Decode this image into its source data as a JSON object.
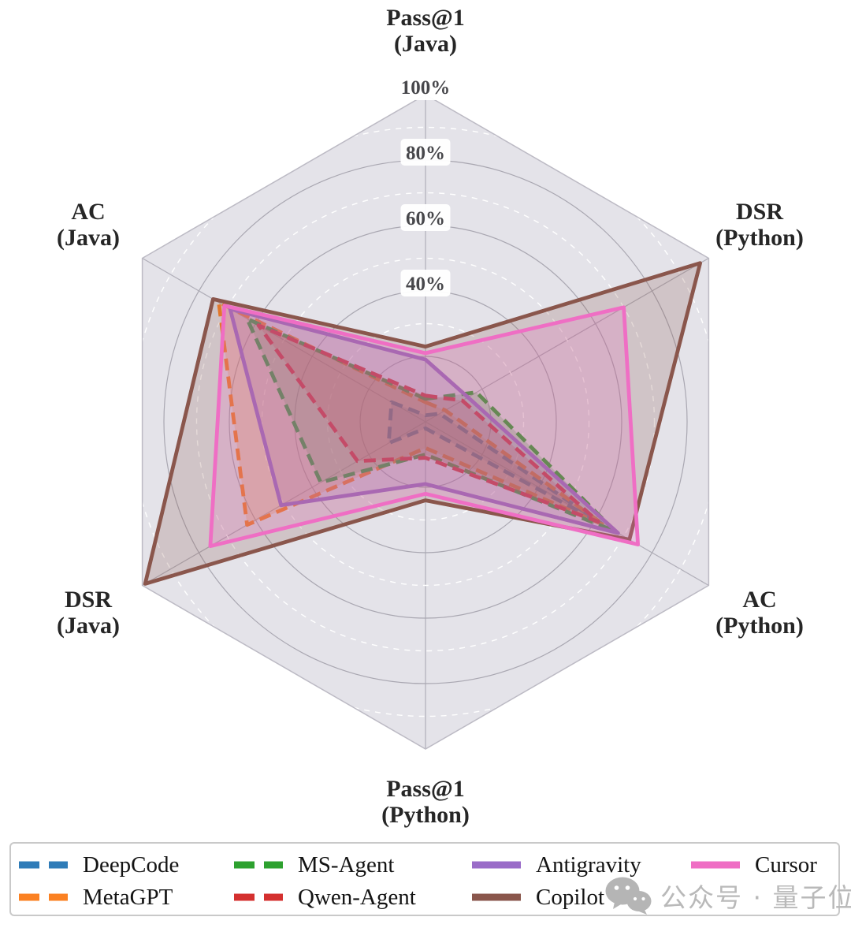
{
  "chart_data": {
    "type": "radar",
    "title": "",
    "max": 100,
    "unit": "%",
    "axes": [
      {
        "id": "pass1-java",
        "line1": "Pass@1",
        "line2": "(Java)"
      },
      {
        "id": "dsr-python",
        "line1": "DSR",
        "line2": "(Python)"
      },
      {
        "id": "ac-python",
        "line1": "AC",
        "line2": "(Python)"
      },
      {
        "id": "pass1-python",
        "line1": "Pass@1",
        "line2": "(Python)"
      },
      {
        "id": "dsr-java",
        "line1": "DSR",
        "line2": "(Java)"
      },
      {
        "id": "ac-java",
        "line1": "AC",
        "line2": "(Java)"
      }
    ],
    "radial_ticks": [
      {
        "label": "100%",
        "value": 100
      },
      {
        "label": "80%",
        "value": 80
      },
      {
        "label": "60%",
        "value": 60
      },
      {
        "label": "40%",
        "value": 40
      }
    ],
    "grid": {
      "major_rings": [
        20,
        40,
        60,
        80
      ],
      "minor_rings": [
        30,
        50,
        70,
        90
      ],
      "shape": "hexagon-frame-with-circular-rings"
    },
    "series": [
      {
        "name": "DeepCode",
        "color": "#2f7cb8",
        "dashed": true,
        "values": [
          2,
          5,
          62,
          2,
          13,
          12
        ]
      },
      {
        "name": "MetaGPT",
        "color": "#fb8122",
        "dashed": true,
        "values": [
          6,
          7,
          63,
          8,
          63,
          73
        ]
      },
      {
        "name": "MS-Agent",
        "color": "#2da12f",
        "dashed": true,
        "values": [
          7,
          18,
          67,
          10,
          37,
          63
        ]
      },
      {
        "name": "Qwen-Agent",
        "color": "#d4302f",
        "dashed": true,
        "values": [
          8,
          13,
          61,
          11,
          24,
          59
        ]
      },
      {
        "name": "Antigravity",
        "color": "#9a6cc8",
        "dashed": false,
        "values": [
          19,
          15,
          68,
          19,
          51,
          69
        ]
      },
      {
        "name": "Copilot",
        "color": "#8a564c",
        "dashed": false,
        "values": [
          23,
          97,
          72,
          24,
          99,
          75
        ]
      },
      {
        "name": "Cursor",
        "color": "#ef6ec4",
        "dashed": false,
        "values": [
          21,
          70,
          75,
          22,
          76,
          71
        ]
      }
    ],
    "legend_position": "bottom"
  },
  "style_colors": {
    "plot_background": "#e4e3e9",
    "ring_major": "#a9a7b1",
    "ring_minor": "#ffffff",
    "spoke": "#b0aeb8",
    "hex_border": "#bcbac4",
    "tick_text": "#47474b",
    "tick_box": "#ffffff",
    "axis_text": "#262626",
    "fill_opacity": 0.22
  },
  "watermark": {
    "icon": "wechat-icon",
    "text": "公众号 · 量子位",
    "color": "#b9b9b9"
  }
}
